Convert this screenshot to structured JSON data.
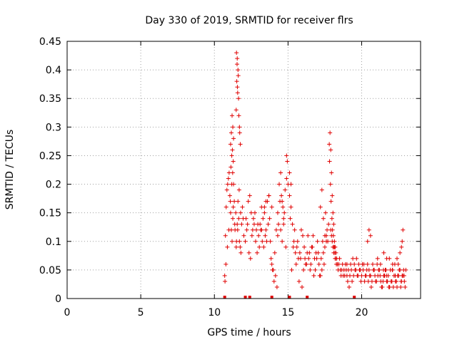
{
  "chart_data": {
    "type": "scatter",
    "title": "Day 330 of 2019, SRMTID for receiver flrs",
    "xlabel": "GPS time / hours",
    "ylabel": "SRMTID / TECUs",
    "xlim": [
      0,
      24
    ],
    "ylim": [
      0,
      0.45
    ],
    "x_ticks": [
      0,
      5,
      10,
      15,
      20
    ],
    "x_tick_labels": [
      "0",
      "5",
      "10",
      "15",
      "20"
    ],
    "y_ticks": [
      0,
      0.05,
      0.1,
      0.15,
      0.2,
      0.25,
      0.3,
      0.35,
      0.4,
      0.45
    ],
    "y_tick_labels": [
      "0",
      "0.05",
      "0.1",
      "0.15",
      "0.2",
      "0.25",
      "0.3",
      "0.35",
      "0.4",
      "0.45"
    ],
    "grid": true,
    "marker": "+",
    "color": "#e00000",
    "series": [
      {
        "name": "SRMTID",
        "x": [
          10.7,
          10.75,
          10.8,
          10.85,
          10.9,
          10.95,
          11.0,
          11.05,
          11.1,
          11.15,
          11.2,
          11.25,
          11.3,
          11.35,
          11.4,
          11.45,
          11.5,
          11.55,
          11.6,
          11.65,
          11.7,
          11.75,
          11.8,
          11.85,
          11.9,
          11.95,
          12.0,
          10.72,
          10.78,
          10.88,
          10.98,
          11.08,
          11.18,
          11.28,
          11.38,
          11.48,
          11.58,
          11.68,
          11.78,
          11.1,
          11.15,
          11.2,
          11.25,
          11.3,
          11.22,
          11.18,
          11.28,
          11.12,
          11.24,
          11.5,
          11.55,
          11.6,
          11.52,
          11.58,
          11.56,
          11.62,
          11.54,
          11.64,
          11.48,
          11.66,
          11.7,
          11.72,
          11.76,
          12.1,
          12.2,
          12.3,
          12.4,
          12.5,
          12.6,
          12.7,
          12.8,
          12.9,
          13.0,
          13.1,
          13.2,
          13.3,
          13.4,
          13.5,
          13.6,
          13.7,
          13.8,
          13.9,
          14.0,
          14.1,
          14.2,
          14.3,
          14.4,
          14.5,
          14.6,
          14.7,
          14.8,
          14.9,
          15.0,
          12.15,
          12.35,
          12.55,
          12.75,
          12.95,
          13.15,
          13.35,
          13.55,
          13.75,
          13.95,
          14.15,
          14.35,
          14.55,
          14.75,
          14.95,
          12.25,
          12.45,
          12.65,
          12.85,
          13.05,
          13.25,
          13.45,
          13.65,
          13.85,
          14.05,
          14.25,
          14.45,
          14.65,
          14.85,
          13.2,
          13.4,
          13.5,
          13.7,
          13.9,
          14.3,
          14.5,
          14.6,
          14.7,
          14.9,
          15.1,
          15.2,
          15.1,
          15.2,
          15.3,
          15.4,
          15.5,
          15.6,
          15.7,
          15.8,
          15.9,
          16.0,
          16.1,
          16.2,
          16.3,
          16.4,
          16.5,
          16.6,
          16.7,
          16.8,
          16.9,
          17.0,
          17.1,
          17.2,
          17.3,
          17.4,
          17.5,
          17.6,
          17.7,
          15.15,
          15.35,
          15.55,
          15.75,
          15.95,
          16.15,
          16.35,
          16.55,
          16.75,
          16.95,
          17.15,
          17.35,
          17.55,
          17.75,
          15.25,
          15.45,
          15.65,
          15.85,
          16.05,
          16.25,
          16.45,
          16.65,
          16.85,
          17.05,
          17.25,
          17.45,
          17.65,
          17.2,
          17.3,
          17.4,
          17.5,
          17.6,
          17.8,
          17.85,
          17.9,
          17.95,
          18.0,
          18.05,
          18.1,
          18.15,
          18.2,
          18.25,
          18.3,
          18.35,
          18.4,
          18.45,
          18.5,
          18.55,
          18.6,
          18.65,
          18.7,
          18.75,
          18.8,
          18.85,
          18.9,
          18.95,
          19.0,
          17.82,
          17.88,
          17.92,
          17.98,
          18.02,
          18.08,
          18.12,
          18.18,
          18.22,
          18.28,
          17.9,
          17.95,
          18.0,
          18.05,
          18.1,
          18.15,
          18.2,
          19.0,
          19.1,
          19.2,
          19.3,
          19.4,
          19.5,
          19.6,
          19.7,
          19.8,
          19.9,
          20.0,
          20.1,
          20.2,
          20.3,
          20.4,
          20.5,
          20.6,
          20.7,
          20.8,
          20.9,
          19.05,
          19.25,
          19.45,
          19.65,
          19.85,
          20.05,
          20.25,
          20.45,
          20.65,
          20.85,
          19.15,
          19.35,
          19.55,
          19.75,
          19.95,
          20.15,
          20.35,
          20.55,
          20.75,
          20.95,
          20.4,
          20.5,
          20.6,
          21.0,
          21.1,
          21.2,
          21.3,
          21.4,
          21.5,
          21.6,
          21.7,
          21.8,
          21.9,
          22.0,
          22.1,
          22.2,
          22.3,
          22.4,
          22.5,
          22.6,
          22.7,
          22.8,
          22.9,
          23.0,
          21.05,
          21.25,
          21.45,
          21.65,
          21.85,
          22.05,
          22.25,
          22.45,
          22.65,
          22.85,
          21.15,
          21.35,
          21.55,
          21.75,
          21.95,
          22.15,
          22.35,
          22.55,
          22.75,
          22.95,
          21.08,
          21.28,
          21.48,
          21.68,
          21.88,
          22.08,
          22.28,
          22.48,
          22.68,
          22.88,
          21.5,
          21.7,
          22.1,
          22.4,
          22.6,
          22.7,
          22.75,
          22.8
        ],
        "y": [
          0.04,
          0.11,
          0.16,
          0.19,
          0.2,
          0.21,
          0.22,
          0.18,
          0.15,
          0.12,
          0.1,
          0.14,
          0.2,
          0.17,
          0.12,
          0.15,
          0.1,
          0.13,
          0.17,
          0.14,
          0.1,
          0.09,
          0.08,
          0.13,
          0.16,
          0.14,
          0.11,
          0.03,
          0.06,
          0.09,
          0.12,
          0.17,
          0.2,
          0.16,
          0.13,
          0.09,
          0.12,
          0.19,
          0.15,
          0.27,
          0.29,
          0.32,
          0.3,
          0.28,
          0.26,
          0.25,
          0.24,
          0.23,
          0.22,
          0.43,
          0.42,
          0.4,
          0.38,
          0.36,
          0.37,
          0.39,
          0.41,
          0.35,
          0.33,
          0.32,
          0.3,
          0.29,
          0.27,
          0.1,
          0.12,
          0.17,
          0.18,
          0.15,
          0.12,
          0.13,
          0.1,
          0.08,
          0.11,
          0.13,
          0.12,
          0.14,
          0.16,
          0.12,
          0.17,
          0.18,
          0.1,
          0.06,
          0.05,
          0.08,
          0.12,
          0.15,
          0.2,
          0.22,
          0.17,
          0.14,
          0.19,
          0.21,
          0.2,
          0.14,
          0.08,
          0.11,
          0.15,
          0.13,
          0.12,
          0.09,
          0.1,
          0.14,
          0.05,
          0.04,
          0.13,
          0.18,
          0.15,
          0.24,
          0.13,
          0.07,
          0.14,
          0.12,
          0.09,
          0.1,
          0.11,
          0.13,
          0.07,
          0.03,
          0.02,
          0.17,
          0.16,
          0.09,
          0.16,
          0.15,
          0.17,
          0.18,
          0.16,
          0.11,
          0.12,
          0.1,
          0.13,
          0.25,
          0.22,
          0.2,
          0.18,
          0.16,
          0.13,
          0.1,
          0.08,
          0.09,
          0.07,
          0.08,
          0.12,
          0.11,
          0.09,
          0.06,
          0.08,
          0.07,
          0.05,
          0.09,
          0.11,
          0.07,
          0.08,
          0.1,
          0.06,
          0.04,
          0.05,
          0.08,
          0.09,
          0.11,
          0.1,
          0.14,
          0.09,
          0.06,
          0.03,
          0.02,
          0.07,
          0.11,
          0.06,
          0.04,
          0.07,
          0.04,
          0.1,
          0.15,
          0.13,
          0.05,
          0.12,
          0.1,
          0.07,
          0.05,
          0.06,
          0.08,
          0.09,
          0.05,
          0.08,
          0.07,
          0.06,
          0.12,
          0.16,
          0.19,
          0.14,
          0.11,
          0.1,
          0.27,
          0.29,
          0.26,
          0.22,
          0.18,
          0.15,
          0.13,
          0.1,
          0.09,
          0.08,
          0.07,
          0.06,
          0.05,
          0.06,
          0.07,
          0.05,
          0.04,
          0.05,
          0.06,
          0.04,
          0.05,
          0.04,
          0.06,
          0.05,
          0.04,
          0.24,
          0.2,
          0.17,
          0.14,
          0.12,
          0.11,
          0.09,
          0.08,
          0.07,
          0.06,
          0.12,
          0.11,
          0.1,
          0.09,
          0.08,
          0.09,
          0.07,
          0.06,
          0.05,
          0.04,
          0.05,
          0.07,
          0.06,
          0.05,
          0.04,
          0.06,
          0.05,
          0.04,
          0.05,
          0.03,
          0.04,
          0.06,
          0.05,
          0.04,
          0.03,
          0.05,
          0.04,
          0.03,
          0.06,
          0.04,
          0.07,
          0.05,
          0.06,
          0.04,
          0.03,
          0.02,
          0.05,
          0.02,
          0.03,
          0.05,
          0.04,
          0.03,
          0.06,
          0.05,
          0.04,
          0.06,
          0.03,
          0.1,
          0.12,
          0.11,
          0.03,
          0.04,
          0.05,
          0.03,
          0.02,
          0.04,
          0.05,
          0.03,
          0.04,
          0.02,
          0.03,
          0.05,
          0.04,
          0.03,
          0.02,
          0.04,
          0.05,
          0.03,
          0.04,
          0.03,
          0.05,
          0.06,
          0.04,
          0.03,
          0.05,
          0.02,
          0.03,
          0.06,
          0.04,
          0.02,
          0.05,
          0.05,
          0.02,
          0.04,
          0.03,
          0.05,
          0.02,
          0.03,
          0.05,
          0.04,
          0.02,
          0.07,
          0.06,
          0.05,
          0.04,
          0.07,
          0.05,
          0.04,
          0.06,
          0.03,
          0.04,
          0.08,
          0.07,
          0.06,
          0.07,
          0.08,
          0.09,
          0.1,
          0.12
        ]
      }
    ],
    "rug_x": [
      10.7,
      12.1,
      12.4,
      13.9,
      15.1,
      16.3,
      19.5
    ]
  }
}
